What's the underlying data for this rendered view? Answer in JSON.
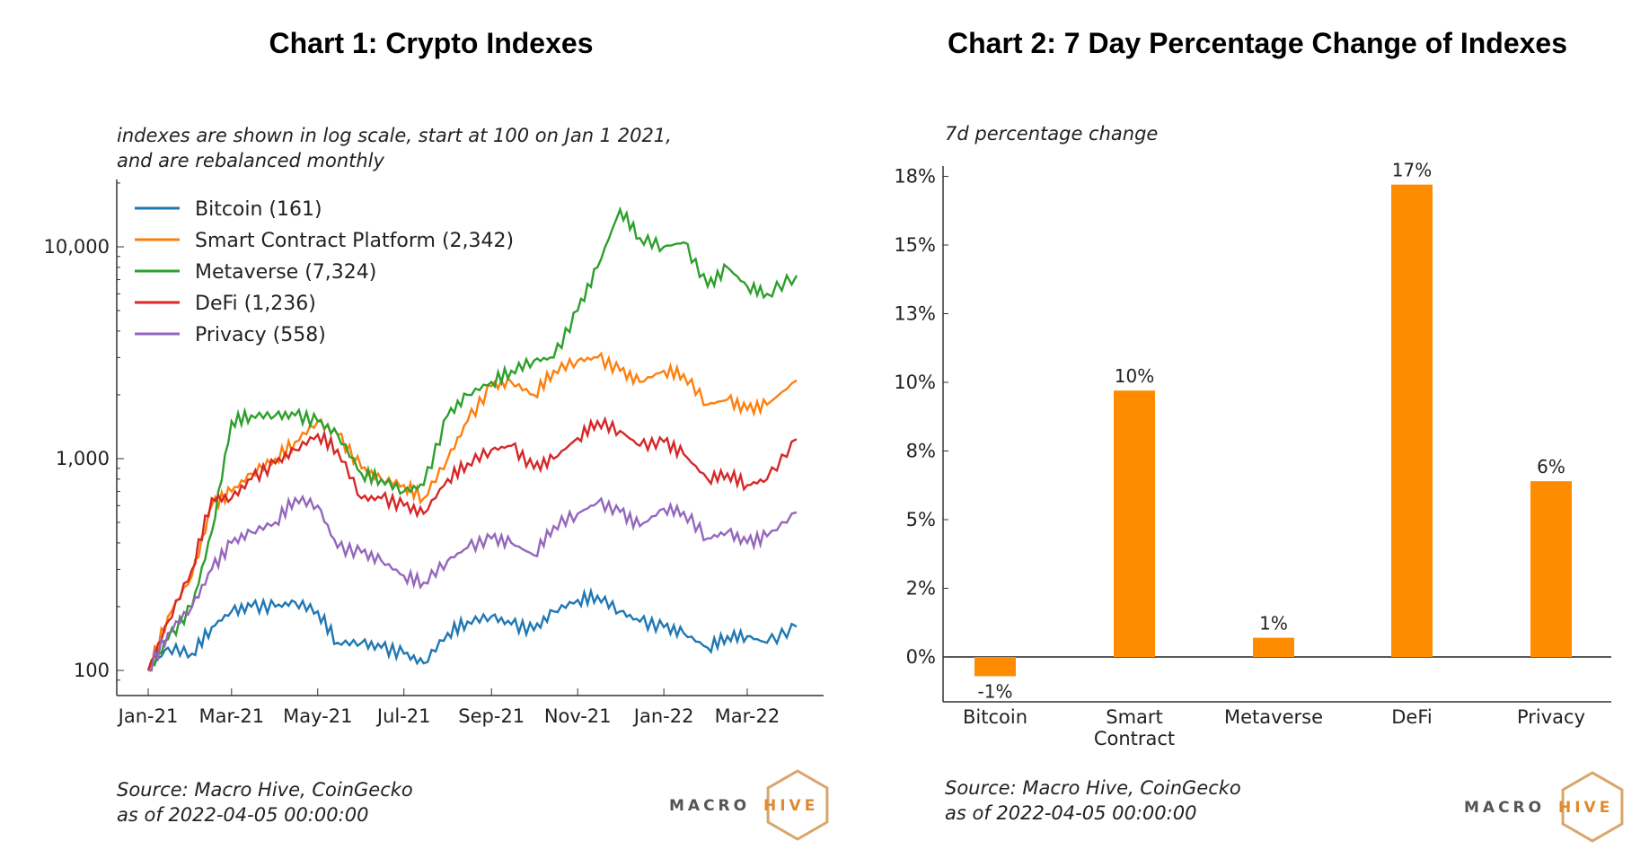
{
  "chart_data": [
    {
      "type": "line",
      "title": "Chart 1: Crypto Indexes",
      "subtitle": [
        "indexes are shown in log scale, start at 100 on Jan 1 2021,",
        "and are rebalanced monthly"
      ],
      "yscale": "log",
      "ylim": [
        85,
        20000
      ],
      "yticks": [
        {
          "value": 100,
          "label": "100"
        },
        {
          "value": 1000,
          "label": "1,000"
        },
        {
          "value": 10000,
          "label": "10,000"
        }
      ],
      "xticks": [
        {
          "date": "2021-01-01",
          "label": "Jan-21"
        },
        {
          "date": "2021-03-01",
          "label": "Mar-21"
        },
        {
          "date": "2021-05-01",
          "label": "May-21"
        },
        {
          "date": "2021-07-01",
          "label": "Jul-21"
        },
        {
          "date": "2021-09-01",
          "label": "Sep-21"
        },
        {
          "date": "2021-11-01",
          "label": "Nov-21"
        },
        {
          "date": "2022-01-01",
          "label": "Jan-22"
        },
        {
          "date": "2022-03-01",
          "label": "Mar-22"
        }
      ],
      "legend_position": "top-left",
      "x": [
        "2021-01-01",
        "2021-01-15",
        "2021-02-01",
        "2021-02-15",
        "2021-03-01",
        "2021-03-15",
        "2021-04-01",
        "2021-04-15",
        "2021-05-01",
        "2021-05-15",
        "2021-06-01",
        "2021-06-15",
        "2021-07-01",
        "2021-07-15",
        "2021-08-01",
        "2021-08-15",
        "2021-09-01",
        "2021-09-15",
        "2021-10-01",
        "2021-10-15",
        "2021-11-01",
        "2021-11-15",
        "2021-12-01",
        "2021-12-15",
        "2022-01-01",
        "2022-01-15",
        "2022-02-01",
        "2022-02-15",
        "2022-03-01",
        "2022-03-15",
        "2022-04-05"
      ],
      "series": [
        {
          "name": "Bitcoin (161)",
          "color": "#1f77b4",
          "values": [
            100,
            128,
            120,
            160,
            190,
            200,
            200,
            210,
            190,
            135,
            135,
            128,
            120,
            108,
            150,
            170,
            180,
            165,
            155,
            190,
            215,
            225,
            190,
            170,
            160,
            150,
            128,
            145,
            145,
            135,
            161
          ]
        },
        {
          "name": "Smart Contract Platform (2,342)",
          "color": "#ff7f0e",
          "values": [
            100,
            180,
            280,
            600,
            700,
            850,
            1000,
            1200,
            1500,
            1300,
            900,
            800,
            750,
            650,
            1000,
            1500,
            2200,
            2300,
            2000,
            2600,
            2900,
            3000,
            2600,
            2300,
            2600,
            2500,
            1800,
            1900,
            1700,
            1800,
            2342
          ]
        },
        {
          "name": "Metaverse (7,324)",
          "color": "#2ca02c",
          "values": [
            100,
            140,
            200,
            450,
            1500,
            1600,
            1600,
            1600,
            1500,
            1300,
            850,
            800,
            700,
            750,
            1600,
            2000,
            2300,
            2600,
            2900,
            3000,
            5000,
            8000,
            15000,
            11000,
            10000,
            10500,
            6500,
            8000,
            6500,
            6000,
            7324
          ]
        },
        {
          "name": "DeFi (1,236)",
          "color": "#d62728",
          "values": [
            100,
            170,
            300,
            650,
            650,
            800,
            950,
            1100,
            1300,
            1100,
            650,
            650,
            600,
            550,
            800,
            950,
            1100,
            1150,
            900,
            1000,
            1250,
            1500,
            1350,
            1150,
            1200,
            1050,
            800,
            850,
            750,
            800,
            1236
          ]
        },
        {
          "name": "Privacy (558)",
          "color": "#9467bd",
          "values": [
            100,
            150,
            200,
            300,
            400,
            450,
            500,
            650,
            600,
            380,
            360,
            330,
            280,
            260,
            330,
            380,
            420,
            400,
            350,
            480,
            550,
            620,
            560,
            480,
            580,
            560,
            420,
            450,
            400,
            430,
            558
          ]
        }
      ],
      "source": [
        "Source: Macro Hive, CoinGecko",
        "as of 2022-04-05 00:00:00"
      ]
    },
    {
      "type": "bar",
      "title": "Chart 2: 7 Day Percentage Change of Indexes",
      "ylabel": "7d percentage change",
      "categories": [
        [
          "Bitcoin"
        ],
        [
          "Smart",
          "Contract"
        ],
        [
          "Metaverse"
        ],
        [
          "DeFi"
        ],
        [
          "Privacy"
        ]
      ],
      "values": [
        -0.7,
        9.7,
        0.7,
        17.2,
        6.4
      ],
      "data_labels": [
        "-1%",
        "10%",
        "1%",
        "17%",
        "6%"
      ],
      "yticks": [
        {
          "value": 0,
          "label": "0%"
        },
        {
          "value": 2.5,
          "label": "2%"
        },
        {
          "value": 5,
          "label": "5%"
        },
        {
          "value": 7.5,
          "label": "8%"
        },
        {
          "value": 10,
          "label": "10%"
        },
        {
          "value": 12.5,
          "label": "13%"
        },
        {
          "value": 15,
          "label": "15%"
        },
        {
          "value": 17.5,
          "label": "18%"
        }
      ],
      "ylim": [
        -1.7,
        18
      ],
      "bar_color": "#ff8c00",
      "source": [
        "Source: Macro Hive, CoinGecko",
        "as of 2022-04-05 00:00:00"
      ]
    }
  ],
  "logo": {
    "text_left": "MACRO",
    "text_right": "HIVE",
    "color_left": "#555555",
    "color_right": "#e08a2e"
  }
}
